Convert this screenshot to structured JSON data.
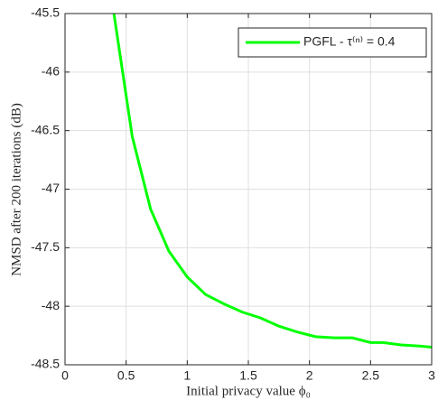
{
  "chart_data": {
    "type": "line",
    "x_label": "Initial privacy value ϕ₀",
    "y_label": "NMSD after 200 iterations (dB)",
    "series": [
      {
        "name": "PGFL - τ⁽ⁿ⁾ = 0.4",
        "color": "#00ff00",
        "x": [
          0.4,
          0.55,
          0.7,
          0.85,
          1.0,
          1.15,
          1.3,
          1.45,
          1.6,
          1.75,
          1.9,
          2.05,
          2.2,
          2.35,
          2.5,
          2.6,
          2.75,
          2.9,
          3.0
        ],
        "values": [
          -45.5,
          -46.55,
          -47.17,
          -47.53,
          -47.75,
          -47.9,
          -47.98,
          -48.05,
          -48.1,
          -48.17,
          -48.22,
          -48.26,
          -48.27,
          -48.27,
          -48.31,
          -48.31,
          -48.33,
          -48.34,
          -48.35
        ]
      }
    ],
    "xlim": [
      0,
      3
    ],
    "xticks": [
      0,
      0.5,
      1,
      1.5,
      2,
      2.5,
      3
    ],
    "ylim": [
      -48.5,
      -45.5
    ],
    "yticks": [
      -48.5,
      -48,
      -47.5,
      -47,
      -46.5,
      -46,
      -45.5
    ],
    "grid": true,
    "legend": "upper right"
  }
}
